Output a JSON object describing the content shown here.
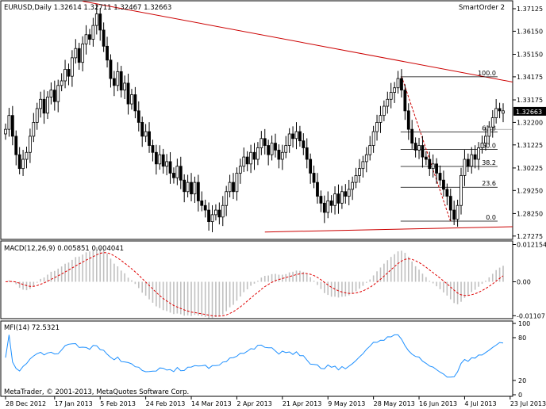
{
  "window": {
    "chart_title": "EURUSD,Daily  1.32614 1.32711 1.32467 1.32663",
    "expert_name": "SmartOrder 2",
    "copyright": "MetaTrader, © 2001-2013, MetaQuotes Software Corp."
  },
  "colors": {
    "candle": "#000000",
    "trendline": "#cc0000",
    "macd_hist": "#c0c0c0",
    "macd_signal": "#e00000",
    "mfi_line": "#1e90ff",
    "fibo": "#000000",
    "badge_bg": "#000000"
  },
  "chart_data": [
    {
      "type": "candlestick",
      "name": "price",
      "title": "EURUSD,Daily  1.32614 1.32711 1.32467 1.32663",
      "ylim": [
        1.272,
        1.374
      ],
      "y_ticks": [
        "1.37125",
        "1.36150",
        "1.35150",
        "1.34175",
        "1.33175",
        "1.32663",
        "1.32200",
        "1.31225",
        "1.30225",
        "1.29250",
        "1.28250",
        "1.27275"
      ],
      "y_tick_values": [
        1.37125,
        1.3615,
        1.3515,
        1.34175,
        1.33175,
        1.32663,
        1.322,
        1.31225,
        1.30225,
        1.2925,
        1.2825,
        1.27275
      ],
      "current_price": "1.32663",
      "x_labels": [
        "28 Dec 2012",
        "17 Jan 2013",
        "5 Feb 2013",
        "24 Feb 2013",
        "14 Mar 2013",
        "2 Apr 2013",
        "21 Apr 2013",
        "9 May 2013",
        "28 May 2013",
        "16 Jun 2013",
        "4 Jul 2013",
        "23 Jul 2013"
      ],
      "x_label_index": [
        0,
        14,
        27,
        40,
        53,
        66,
        79,
        92,
        105,
        118,
        131,
        144
      ],
      "fibonacci": {
        "levels": [
          "100.0",
          "61.8",
          "50.0",
          "38.2",
          "23.6",
          "0.0"
        ],
        "values": [
          1.34175,
          1.3178,
          1.3103,
          1.3029,
          1.2939,
          1.2792
        ]
      },
      "close": [
        1.319,
        1.325,
        1.316,
        1.308,
        1.302,
        1.306,
        1.309,
        1.316,
        1.322,
        1.328,
        1.332,
        1.326,
        1.333,
        1.336,
        1.331,
        1.338,
        1.34,
        1.345,
        1.342,
        1.35,
        1.354,
        1.348,
        1.356,
        1.36,
        1.358,
        1.364,
        1.369,
        1.362,
        1.355,
        1.349,
        1.341,
        1.338,
        1.344,
        1.336,
        1.339,
        1.33,
        1.334,
        1.327,
        1.322,
        1.316,
        1.318,
        1.312,
        1.309,
        1.304,
        1.308,
        1.303,
        1.305,
        1.3,
        1.298,
        1.303,
        1.297,
        1.292,
        1.296,
        1.291,
        1.296,
        1.288,
        1.286,
        1.284,
        1.279,
        1.282,
        1.284,
        1.281,
        1.286,
        1.292,
        1.296,
        1.292,
        1.3,
        1.303,
        1.307,
        1.304,
        1.309,
        1.306,
        1.311,
        1.315,
        1.312,
        1.308,
        1.313,
        1.31,
        1.306,
        1.309,
        1.312,
        1.317,
        1.315,
        1.318,
        1.314,
        1.311,
        1.306,
        1.3,
        1.296,
        1.29,
        1.287,
        1.283,
        1.288,
        1.286,
        1.291,
        1.287,
        1.292,
        1.29,
        1.293,
        1.296,
        1.299,
        1.302,
        1.305,
        1.308,
        1.312,
        1.318,
        1.322,
        1.325,
        1.329,
        1.332,
        1.335,
        1.337,
        1.341,
        1.336,
        1.327,
        1.319,
        1.313,
        1.31,
        1.312,
        1.307,
        1.306,
        1.302,
        1.304,
        1.3,
        1.297,
        1.293,
        1.29,
        1.284,
        1.28,
        1.286,
        1.299,
        1.306,
        1.303,
        1.308,
        1.306,
        1.311,
        1.313,
        1.316,
        1.32,
        1.324,
        1.328,
        1.327,
        1.327
      ],
      "open": [
        1.317,
        1.319,
        1.325,
        1.316,
        1.308,
        1.302,
        1.306,
        1.309,
        1.316,
        1.322,
        1.328,
        1.332,
        1.326,
        1.333,
        1.336,
        1.331,
        1.338,
        1.34,
        1.345,
        1.342,
        1.35,
        1.354,
        1.348,
        1.356,
        1.36,
        1.358,
        1.364,
        1.369,
        1.362,
        1.355,
        1.349,
        1.341,
        1.338,
        1.344,
        1.336,
        1.339,
        1.33,
        1.334,
        1.327,
        1.322,
        1.316,
        1.318,
        1.312,
        1.309,
        1.304,
        1.308,
        1.303,
        1.305,
        1.3,
        1.298,
        1.303,
        1.297,
        1.292,
        1.296,
        1.291,
        1.296,
        1.288,
        1.286,
        1.284,
        1.279,
        1.282,
        1.284,
        1.281,
        1.286,
        1.292,
        1.296,
        1.292,
        1.3,
        1.303,
        1.307,
        1.304,
        1.309,
        1.306,
        1.311,
        1.315,
        1.312,
        1.308,
        1.313,
        1.31,
        1.306,
        1.309,
        1.312,
        1.317,
        1.315,
        1.318,
        1.314,
        1.311,
        1.306,
        1.3,
        1.296,
        1.29,
        1.287,
        1.283,
        1.288,
        1.286,
        1.291,
        1.287,
        1.292,
        1.29,
        1.293,
        1.296,
        1.299,
        1.302,
        1.305,
        1.308,
        1.312,
        1.318,
        1.322,
        1.325,
        1.329,
        1.332,
        1.335,
        1.337,
        1.341,
        1.336,
        1.327,
        1.319,
        1.313,
        1.31,
        1.312,
        1.307,
        1.306,
        1.302,
        1.304,
        1.3,
        1.297,
        1.293,
        1.29,
        1.284,
        1.28,
        1.286,
        1.299,
        1.306,
        1.303,
        1.308,
        1.306,
        1.311,
        1.313,
        1.316,
        1.32,
        1.324,
        1.328,
        1.326
      ]
    },
    {
      "type": "histogram+line",
      "name": "macd",
      "label": "MACD(12,26,9) 0.005851 0.004041",
      "ylim": [
        -0.0115,
        0.0128
      ],
      "y_ticks": [
        "0.012154",
        "0.00",
        "-0.01107"
      ],
      "y_tick_values": [
        0.012154,
        0.0,
        -0.01107
      ]
    },
    {
      "type": "line",
      "name": "mfi",
      "label": "MFI(14) 72.5321",
      "ylim": [
        0,
        100
      ],
      "y_ticks": [
        "100",
        "80",
        "20",
        "0"
      ],
      "y_tick_values": [
        100,
        80,
        20,
        0
      ]
    }
  ]
}
